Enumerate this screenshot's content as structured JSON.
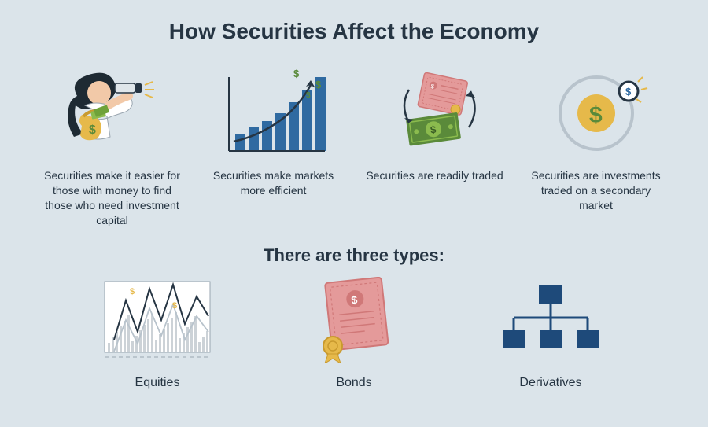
{
  "background_color": "#dbe4ea",
  "text_color": "#263543",
  "title": {
    "text": "How Securities Affect the Economy",
    "fontsize": 28
  },
  "subtitle": {
    "text": "There are three types:",
    "fontsize": 22
  },
  "caption_fontsize": 14,
  "type_label_fontsize": 16,
  "palette": {
    "navy": "#263543",
    "blue": "#2f6aa1",
    "dark_blue": "#1e4a7a",
    "green": "#5a8a3a",
    "money_green": "#8bbb4e",
    "pink": "#e49a9a",
    "pink_dark": "#d07878",
    "gold": "#e6b94a",
    "gray_light": "#b8c3cc",
    "gray_mid": "#9aa6b0",
    "white": "#ffffff",
    "hair": "#1e2a33",
    "skin": "#f2c9a8"
  },
  "effects": [
    {
      "id": "find-capital",
      "icon": "person-binoculars",
      "caption": "Securities make it easier for those with money to find those who need investment capital"
    },
    {
      "id": "efficient-markets",
      "icon": "bar-growth",
      "caption": "Securities make markets more efficient"
    },
    {
      "id": "readily-traded",
      "icon": "certificate-cash-swap",
      "caption": "Securities are readily traded"
    },
    {
      "id": "secondary-market",
      "icon": "orbit-coin",
      "caption": "Securities are investments traded on a secondary market"
    }
  ],
  "types": [
    {
      "id": "equities",
      "icon": "volatility-chart",
      "label": "Equities"
    },
    {
      "id": "bonds",
      "icon": "certificate",
      "label": "Bonds"
    },
    {
      "id": "derivatives",
      "icon": "hierarchy",
      "label": "Derivatives"
    }
  ],
  "charts": {
    "bar_growth": {
      "bars": [
        22,
        30,
        38,
        48,
        62,
        78,
        94
      ],
      "color": "#2f6aa1",
      "axis_color": "#263543",
      "arrow_color": "#263543",
      "dollar_color": "#5a8a3a"
    },
    "volatility": {
      "points_dark": [
        10,
        80,
        25,
        30,
        40,
        70,
        55,
        15,
        70,
        55,
        85,
        10,
        100,
        60,
        115,
        25,
        130,
        50
      ],
      "points_light": [
        10,
        95,
        25,
        55,
        40,
        85,
        55,
        40,
        70,
        75,
        85,
        35,
        100,
        80,
        115,
        50,
        130,
        70
      ],
      "bar_color": "#9aa6b0",
      "line_dark": "#263543",
      "line_light": "#b8c3cc",
      "dollar_color": "#e6b94a"
    },
    "hierarchy": {
      "box_color": "#1e4a7a",
      "line_color": "#1e4a7a"
    }
  }
}
